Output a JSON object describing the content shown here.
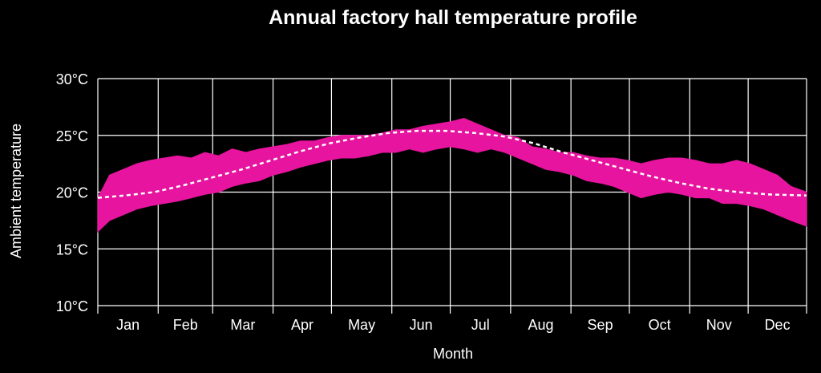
{
  "chart_data": {
    "type": "area",
    "title": "Annual factory hall temperature profile",
    "xlabel": "Month",
    "ylabel": "Ambient temperature",
    "categories": [
      "Jan",
      "Feb",
      "Mar",
      "Apr",
      "May",
      "Jun",
      "Jul",
      "Aug",
      "Sep",
      "Oct",
      "Nov",
      "Dec"
    ],
    "yticks": [
      "10°C",
      "15°C",
      "20°C",
      "25°C",
      "30°C"
    ],
    "ylim": [
      10,
      30
    ],
    "grid": true,
    "colors": {
      "band": "#e6149e",
      "trend": "#ffffff",
      "background": "#000000",
      "grid": "#ffffff"
    },
    "series": [
      {
        "style": "band",
        "x": [
          1,
          7,
          14,
          21,
          28,
          35,
          42,
          49,
          56,
          63,
          70,
          77,
          84,
          91,
          98,
          105,
          112,
          119,
          126,
          133,
          140,
          147,
          154,
          161,
          168,
          175,
          182,
          189,
          196,
          203,
          210,
          217,
          224,
          231,
          238,
          245,
          252,
          259,
          266,
          273,
          280,
          287,
          294,
          301,
          308,
          315,
          322,
          329,
          336,
          343,
          350,
          357,
          365
        ],
        "lower": [
          16.5,
          17.5,
          18.0,
          18.5,
          18.8,
          19.0,
          19.2,
          19.5,
          19.8,
          20.0,
          20.5,
          20.8,
          21.0,
          21.5,
          21.8,
          22.2,
          22.5,
          22.8,
          23.0,
          23.0,
          23.2,
          23.5,
          23.5,
          23.8,
          23.5,
          23.8,
          24.0,
          23.8,
          23.5,
          23.8,
          23.5,
          23.0,
          22.5,
          22.0,
          21.8,
          21.5,
          21.0,
          20.8,
          20.5,
          20.0,
          19.5,
          19.8,
          20.0,
          19.8,
          19.5,
          19.5,
          19.0,
          19.0,
          18.8,
          18.5,
          18.0,
          17.5,
          17.0
        ],
        "upper": [
          19.5,
          21.5,
          22.0,
          22.5,
          22.8,
          23.0,
          23.2,
          23.0,
          23.5,
          23.2,
          23.8,
          23.5,
          23.8,
          24.0,
          24.2,
          24.5,
          24.5,
          24.8,
          25.0,
          25.0,
          25.0,
          25.2,
          25.5,
          25.5,
          25.8,
          26.0,
          26.2,
          26.5,
          26.0,
          25.5,
          25.0,
          24.8,
          24.0,
          23.8,
          23.5,
          23.5,
          23.2,
          23.0,
          23.0,
          22.8,
          22.5,
          22.8,
          23.0,
          23.0,
          22.8,
          22.5,
          22.5,
          22.8,
          22.5,
          22.0,
          21.5,
          20.5,
          20.0
        ]
      },
      {
        "style": "dashed",
        "x": [
          1,
          15,
          30,
          45,
          60,
          75,
          90,
          105,
          120,
          135,
          150,
          165,
          180,
          195,
          210,
          225,
          240,
          255,
          270,
          285,
          300,
          315,
          330,
          345,
          365
        ],
        "values": [
          19.5,
          19.7,
          20.0,
          20.6,
          21.3,
          22.0,
          22.8,
          23.6,
          24.3,
          24.8,
          25.2,
          25.4,
          25.4,
          25.2,
          24.9,
          24.3,
          23.5,
          22.8,
          22.1,
          21.4,
          20.8,
          20.3,
          20.0,
          19.8,
          19.7
        ]
      }
    ]
  }
}
